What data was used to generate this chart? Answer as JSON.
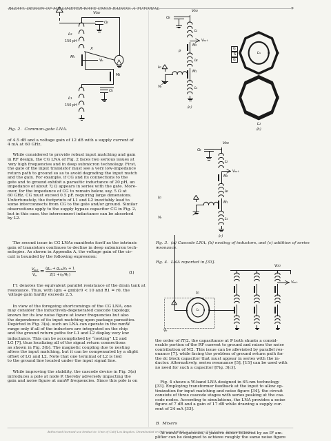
{
  "header_text": "RAZAVI: DESIGN OF MILLIMETER-WAVE CMOS RADIOS: A TUTORIAL",
  "page_number": "7",
  "footer_text": "Authorized licensed use limited to: Univ of Calif Los Angeles. Downloaded on February 3, 2009 at 18:55 from IEEE Xplore.  Restrictions apply.",
  "background_color": "#f5f5f0",
  "text_color": "#1a1a1a",
  "fig2_caption": "Fig. 2.  Common-gate LNA.",
  "fig3_caption": "Fig. 3.  (a) Cascode LNA, (b) nesting of inductors, and (c) addition of series\nresonance.",
  "fig4_caption": "Fig. 4.  LNA reported in [33].",
  "col1_text1": "of 4.5 dB and a voltage gain of 12 dB with a supply current of\n4 mA at 60 GHz.",
  "col1_text2": "    While considered to provide robust input matching and gain\nin RF design, the CG LNA of Fig. 2 faces two serious issues at\nvery high frequencies and in deep submicron technology. First,\nthe gate of the input transistor must see a very low-impedance\nreturn path to ground so as to avoid degrading the input match\nand the gain. For example, if CG and its connections to the\ngate and to ground exhibit a parasitic inductance of 20 pH, an\nimpedance of about 7j Ω appears in series with the gate. More-\nover, for the impedance of CG to remain below, say, 5 Ω at\n60 GHz, CG must exceed 0.5 pF, requiring large dimensions.\nUnfortunately, the footprints of L1 and L2 inevitably lead to\nsome interconnects from CG to the gate and/or ground. Similar\nobservations apply to the supply bypass capacitor CG in Fig. 2,\nbut in this case, the interconnect inductance can be absorbed\nby L2.",
  "col1_text3": "    The second issue in CG LNAs manifests itself as the intrinsic\ngain of transistors continues to decline in deep submicron tech-\nnologies. As shown in Appendix A, the voltage gain of the cir-\ncuit is bounded by the following expression:",
  "col1_text4": "    Γ1 denotes the equivalent parallel resistance of the drain tank at\nresonance. Thus, with (gm + gmb)r0 < 10 and R1 ≈ r0, the\nvoltage gain hardly exceeds 2.5.",
  "col1_text5": "    In view of the foregoing shortcomings of the CG LNA, one\nmay consider the inductively-degenerated cascode topology,\nknown for its low noise figure at lower frequencies but also\nthe dependence of its input matching upon package parasitics.\nDepicted in Fig. 3(a), such an LNA can operate in the mmW\nrange only if all of the inductors are integrated on the chip\nand the ground return paths for L1 and L2 display very low\ninductance. This can be accomplished by “nesting” L2 and\nLG [7], thus localizing all of the signal return connections\nas shown in Fig. 3(b). The magnetic coupling due to nesting\nalters the input matching, but it can be compensated by a slight\noffset of LG and L2. Note that one terminal of L2 is tied\nto the ground line located under the input signal line.",
  "col1_text6": "    While improving the stability, the cascode device in Fig. 3(a)\nintroduces a pole at node P, thereby adversely impacting the\ngain and noise figure at mmW frequencies. Since this pole is on",
  "col2_text1": "the order of fT/2, the capacitance at P both shunts a consid-\nerable portion of the RF current to ground and raises the noise\ncontribution of M2. This issue can be alleviated by parallel res-\nonance [7], while facing the problem of ground return path for\nthe dc block capacitor that must appear in series with the in-\nductor. Alternatively, series resonance [5], [15] can be used with\nno need for such a capacitor [Fig. 3(c)].",
  "col2_text2": "    Fig. 4 shows a W-band LNA designed in 65-nm technology\n[33]. Employing transformer feedback at the input to allow op-\ntimization for input matching and noise figure [34], the circuit\nconsists of three cascode stages with series peaking at the cas-\ncode nodes. According to simulations, the LNA provides a noise\nfigure of 7 dB and a gain of 17 dB while drawing a supply cur-\nrent of 24 mA [33].",
  "col2_text3": "B.  Mixers",
  "col2_text4": "    At mmW frequencies, a passive mixer followed by an IF am-\nplifier can be designed to achieve roughly the same noise figure"
}
